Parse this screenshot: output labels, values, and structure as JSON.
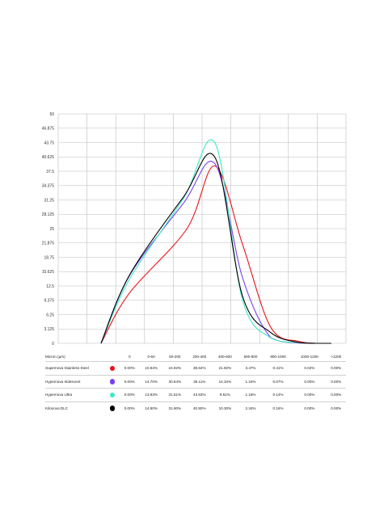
{
  "chart_data": {
    "type": "line",
    "title": "",
    "xlabel": "",
    "ylabel": "",
    "ylim": [
      0,
      50
    ],
    "y_ticks": [
      "0",
      "3.125",
      "6.25",
      "9.375",
      "12.5",
      "15.625",
      "18.75",
      "21.875",
      "25",
      "28.125",
      "31.25",
      "34.375",
      "37.5",
      "40.625",
      "43.75",
      "46.875",
      "50"
    ],
    "grid": true,
    "legend": "table below chart",
    "column_header": "Micron (µm)",
    "categories": [
      "0",
      "0-50",
      "50-200",
      "200-400",
      "400-600",
      "600-800",
      "800-1000",
      "1000-1200",
      ">1200"
    ],
    "series": [
      {
        "name": "Supernova Stainless Steel",
        "color": "#e8141b",
        "labels": [
          "0.00%",
          "10.94%",
          "24.92%",
          "38.64%",
          "21.60%",
          "3.47%",
          "0.41%",
          "0.02%",
          "0.00%"
        ],
        "values": [
          0.0,
          10.94,
          24.92,
          38.64,
          21.6,
          3.47,
          0.41,
          0.02,
          0.0
        ]
      },
      {
        "name": "Hypernova Iridescent",
        "color": "#7b3ff2",
        "labels": [
          "0.00%",
          "14.70%",
          "30.54%",
          "39.11%",
          "14.34%",
          "1.24%",
          "0.07%",
          "0.00%",
          "0.00%"
        ],
        "values": [
          0.0,
          14.7,
          30.54,
          39.11,
          14.34,
          1.24,
          0.07,
          0.0,
          0.0
        ]
      },
      {
        "name": "Hypernova Ultra",
        "color": "#3ee8c4",
        "labels": [
          "0.00%",
          "13.93%",
          "31.61%",
          "43.63%",
          "9.51%",
          "1.18%",
          "0.14%",
          "0.00%",
          "0.00%"
        ],
        "values": [
          0.0,
          13.93,
          31.61,
          43.63,
          9.51,
          1.18,
          0.14,
          0.0,
          0.0
        ]
      },
      {
        "name": "Kilonova DLC",
        "color": "#000000",
        "labels": [
          "0.00%",
          "14.80%",
          "31.90%",
          "40.50%",
          "10.30%",
          "2.34%",
          "0.16%",
          "0.00%",
          "0.00%"
        ],
        "values": [
          0.0,
          14.8,
          31.9,
          40.5,
          10.3,
          2.34,
          0.16,
          0.0,
          0.0
        ]
      }
    ]
  }
}
